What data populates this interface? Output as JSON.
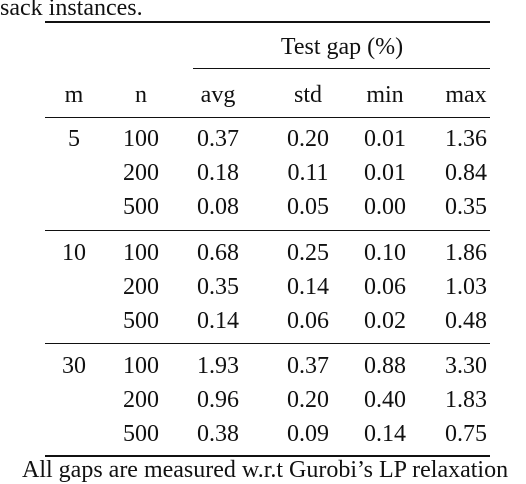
{
  "caption": "sack instances.",
  "table": {
    "group_header": "Test gap (%)",
    "columns": [
      "m",
      "n",
      "avg",
      "std",
      "min",
      "max"
    ],
    "groups": [
      {
        "m": "5",
        "rows": [
          [
            "100",
            "0.37",
            "0.20",
            "0.01",
            "1.36"
          ],
          [
            "200",
            "0.18",
            "0.11",
            "0.01",
            "0.84"
          ],
          [
            "500",
            "0.08",
            "0.05",
            "0.00",
            "0.35"
          ]
        ]
      },
      {
        "m": "10",
        "rows": [
          [
            "100",
            "0.68",
            "0.25",
            "0.10",
            "1.86"
          ],
          [
            "200",
            "0.35",
            "0.14",
            "0.06",
            "1.03"
          ],
          [
            "500",
            "0.14",
            "0.06",
            "0.02",
            "0.48"
          ]
        ]
      },
      {
        "m": "30",
        "rows": [
          [
            "100",
            "1.93",
            "0.37",
            "0.88",
            "3.30"
          ],
          [
            "200",
            "0.96",
            "0.20",
            "0.40",
            "1.83"
          ],
          [
            "500",
            "0.38",
            "0.09",
            "0.14",
            "0.75"
          ]
        ]
      }
    ]
  },
  "footnote": "All gaps are measured w.r.t Gurobi’s LP relaxation"
}
